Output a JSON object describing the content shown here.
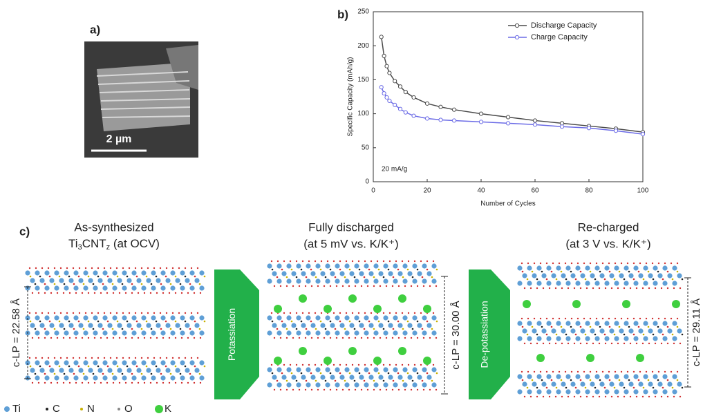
{
  "panel_a": {
    "label": "a)",
    "scale_bar": "2 µm"
  },
  "chart_data": {
    "type": "line",
    "label": "b)",
    "xlabel": "Number of Cycles",
    "ylabel": "Specific Capacity (mAh/g)",
    "annotation": "20 mA/g",
    "x": [
      3,
      4,
      5,
      6,
      8,
      10,
      12,
      15,
      20,
      25,
      30,
      40,
      50,
      60,
      70,
      80,
      90,
      100
    ],
    "series": [
      {
        "name": "Discharge Capacity",
        "color": "#4a4a4a",
        "values": [
          213,
          185,
          170,
          160,
          148,
          140,
          132,
          124,
          115,
          110,
          106,
          100,
          95,
          90,
          86,
          82,
          78,
          73
        ]
      },
      {
        "name": "Charge Capacity",
        "color": "#6b6be6",
        "values": [
          139,
          130,
          124,
          119,
          113,
          107,
          102,
          97,
          93,
          91,
          90,
          88,
          86,
          84,
          81,
          79,
          75,
          70
        ]
      }
    ],
    "xlim": [
      0,
      100
    ],
    "ylim": [
      0,
      250
    ],
    "xticks": [
      0,
      20,
      40,
      60,
      80,
      100
    ],
    "yticks": [
      0,
      50,
      100,
      150,
      200,
      250
    ],
    "legend": "upper right"
  },
  "panel_c": {
    "label": "c)",
    "stages": [
      {
        "line1": "As-synthesized",
        "formula": [
          "Ti",
          "3",
          "CNT",
          "z"
        ],
        "line2_rest": " (at OCV)",
        "spacing": "c-LP = 22.58 Å"
      },
      {
        "line1": "Fully discharged",
        "line2": "(at 5 mV vs. K/K⁺)",
        "spacing": "c-LP = 30.00 Å"
      },
      {
        "line1": "Re-charged",
        "line2": "(at 3 V vs. K/K⁺)",
        "spacing": "c-LP = 29.11 Å"
      }
    ],
    "arrows": [
      "Potassiation",
      "De-potassiation"
    ],
    "legend": [
      "Ti",
      "C",
      "N",
      "O",
      "K"
    ]
  }
}
